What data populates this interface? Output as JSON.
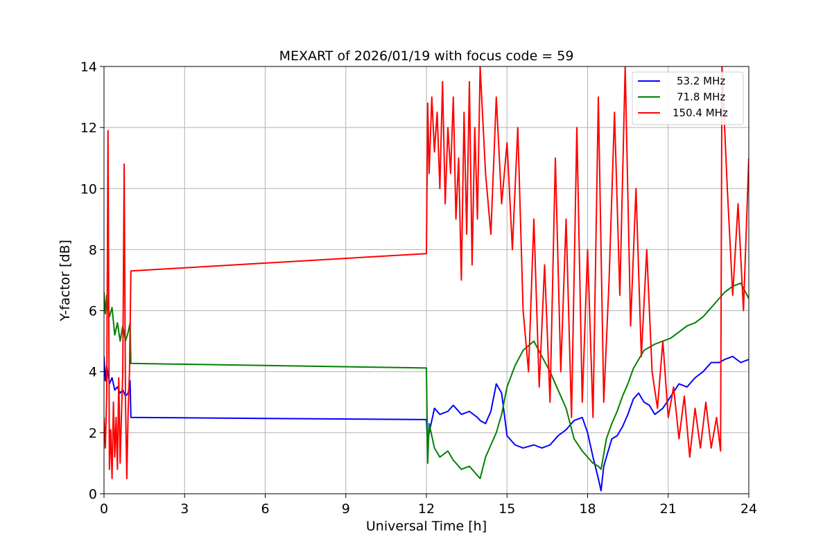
{
  "chart_data": {
    "type": "line",
    "title": "MEXART of 2026/01/19 with focus code = 59",
    "xlabel": "Universal Time [h]",
    "ylabel": "Y-factor [dB]",
    "xlim": [
      0,
      24
    ],
    "ylim": [
      0,
      14
    ],
    "xticks": [
      0,
      3,
      6,
      9,
      12,
      15,
      18,
      21,
      24
    ],
    "yticks": [
      0,
      2,
      4,
      6,
      8,
      10,
      12,
      14
    ],
    "grid": true,
    "legend_position": "top-right",
    "series": [
      {
        "name": "53.2 MHz",
        "color": "#0000ff",
        "x": [
          0,
          0.05,
          0.1,
          0.2,
          0.3,
          0.4,
          0.5,
          0.6,
          0.7,
          0.8,
          0.9,
          0.97,
          1.0,
          12.0,
          12.05,
          12.1,
          12.3,
          12.5,
          12.8,
          13.0,
          13.3,
          13.6,
          13.9,
          14.0,
          14.2,
          14.4,
          14.6,
          14.8,
          15.0,
          15.3,
          15.6,
          16.0,
          16.3,
          16.6,
          16.9,
          17.2,
          17.5,
          17.8,
          18.0,
          18.2,
          18.4,
          18.5,
          18.6,
          18.7,
          18.9,
          19.1,
          19.3,
          19.5,
          19.7,
          19.9,
          20.1,
          20.3,
          20.5,
          20.8,
          21.1,
          21.4,
          21.7,
          22.0,
          22.3,
          22.6,
          22.9,
          23.1,
          23.4,
          23.7,
          24.0
        ],
        "y": [
          4.5,
          3.7,
          4.2,
          3.6,
          3.8,
          3.4,
          3.5,
          3.3,
          3.4,
          3.2,
          3.3,
          3.7,
          2.5,
          2.43,
          1.7,
          2.0,
          2.8,
          2.6,
          2.7,
          2.9,
          2.6,
          2.7,
          2.5,
          2.4,
          2.3,
          2.7,
          3.6,
          3.3,
          1.9,
          1.6,
          1.5,
          1.6,
          1.5,
          1.6,
          1.9,
          2.1,
          2.4,
          2.5,
          2.0,
          1.2,
          0.5,
          0.1,
          0.9,
          1.2,
          1.8,
          1.9,
          2.2,
          2.6,
          3.1,
          3.3,
          3.0,
          2.9,
          2.6,
          2.8,
          3.2,
          3.6,
          3.5,
          3.8,
          4.0,
          4.3,
          4.3,
          4.4,
          4.5,
          4.3,
          4.4
        ]
      },
      {
        "name": "71.8 MHz",
        "color": "#008000",
        "x": [
          0,
          0.05,
          0.1,
          0.2,
          0.3,
          0.4,
          0.5,
          0.6,
          0.7,
          0.8,
          0.9,
          0.97,
          1.0,
          12.0,
          12.05,
          12.1,
          12.3,
          12.5,
          12.8,
          13.0,
          13.3,
          13.6,
          13.9,
          14.0,
          14.2,
          14.4,
          14.6,
          14.8,
          15.0,
          15.3,
          15.6,
          16.0,
          16.3,
          16.6,
          16.9,
          17.2,
          17.5,
          17.8,
          18.0,
          18.2,
          18.4,
          18.5,
          18.6,
          18.7,
          18.9,
          19.1,
          19.3,
          19.5,
          19.7,
          19.9,
          20.1,
          20.3,
          20.5,
          20.8,
          21.1,
          21.4,
          21.7,
          22.0,
          22.3,
          22.6,
          22.9,
          23.1,
          23.4,
          23.7,
          24.0
        ],
        "y": [
          6.6,
          5.9,
          6.5,
          5.8,
          6.1,
          5.2,
          5.6,
          5.0,
          5.5,
          5.0,
          5.3,
          5.6,
          4.27,
          4.12,
          1.0,
          2.3,
          1.5,
          1.2,
          1.4,
          1.1,
          0.8,
          0.9,
          0.6,
          0.5,
          1.2,
          1.6,
          2.0,
          2.6,
          3.5,
          4.2,
          4.7,
          5.0,
          4.5,
          4.0,
          3.4,
          2.8,
          1.8,
          1.4,
          1.2,
          1.0,
          0.9,
          0.8,
          1.3,
          1.8,
          2.3,
          2.7,
          3.2,
          3.6,
          4.1,
          4.4,
          4.7,
          4.8,
          4.9,
          5.0,
          5.1,
          5.3,
          5.5,
          5.6,
          5.8,
          6.1,
          6.4,
          6.6,
          6.8,
          6.9,
          6.4
        ]
      },
      {
        "name": "150.4 MHz",
        "color": "#ff0000",
        "x": [
          0,
          0.05,
          0.1,
          0.15,
          0.2,
          0.25,
          0.3,
          0.35,
          0.4,
          0.45,
          0.5,
          0.55,
          0.6,
          0.65,
          0.7,
          0.75,
          0.8,
          0.85,
          0.9,
          0.95,
          1.0,
          12.0,
          12.05,
          12.1,
          12.2,
          12.3,
          12.4,
          12.5,
          12.6,
          12.7,
          12.8,
          12.9,
          13.0,
          13.1,
          13.2,
          13.3,
          13.4,
          13.5,
          13.6,
          13.7,
          13.8,
          13.9,
          14.0,
          14.2,
          14.4,
          14.6,
          14.8,
          15.0,
          15.2,
          15.4,
          15.6,
          15.8,
          16.0,
          16.2,
          16.4,
          16.6,
          16.8,
          17.0,
          17.2,
          17.4,
          17.6,
          17.8,
          18.0,
          18.2,
          18.4,
          18.6,
          18.8,
          19.0,
          19.2,
          19.4,
          19.6,
          19.8,
          20.0,
          20.2,
          20.4,
          20.6,
          20.8,
          21.0,
          21.2,
          21.4,
          21.6,
          21.8,
          22.0,
          22.2,
          22.4,
          22.6,
          22.8,
          22.95,
          23.0,
          23.2,
          23.4,
          23.6,
          23.8,
          24.0
        ],
        "y": [
          2.5,
          1.5,
          3.2,
          11.9,
          0.8,
          2.1,
          0.5,
          3.0,
          1.2,
          2.5,
          0.8,
          3.8,
          1.0,
          2.6,
          4.0,
          10.8,
          3.0,
          0.5,
          2.8,
          4.0,
          7.3,
          7.87,
          12.8,
          10.5,
          13.0,
          11.2,
          12.5,
          10.0,
          13.5,
          9.5,
          12.0,
          10.5,
          13.0,
          9.0,
          11.0,
          7.0,
          12.5,
          8.5,
          13.5,
          7.5,
          12.0,
          9.0,
          14.0,
          10.5,
          8.5,
          13.0,
          9.5,
          11.5,
          8.0,
          12.0,
          6.0,
          4.0,
          9.0,
          3.5,
          7.5,
          3.0,
          11.0,
          4.0,
          9.0,
          2.5,
          12.0,
          3.0,
          8.0,
          2.5,
          13.0,
          3.0,
          7.0,
          12.5,
          6.5,
          14.0,
          5.5,
          10.0,
          4.5,
          8.0,
          4.0,
          2.8,
          5.0,
          2.5,
          3.5,
          1.8,
          3.2,
          1.2,
          2.8,
          1.5,
          3.0,
          1.5,
          2.5,
          1.4,
          14.0,
          10.0,
          6.5,
          9.5,
          6.0,
          11.0
        ]
      }
    ]
  }
}
